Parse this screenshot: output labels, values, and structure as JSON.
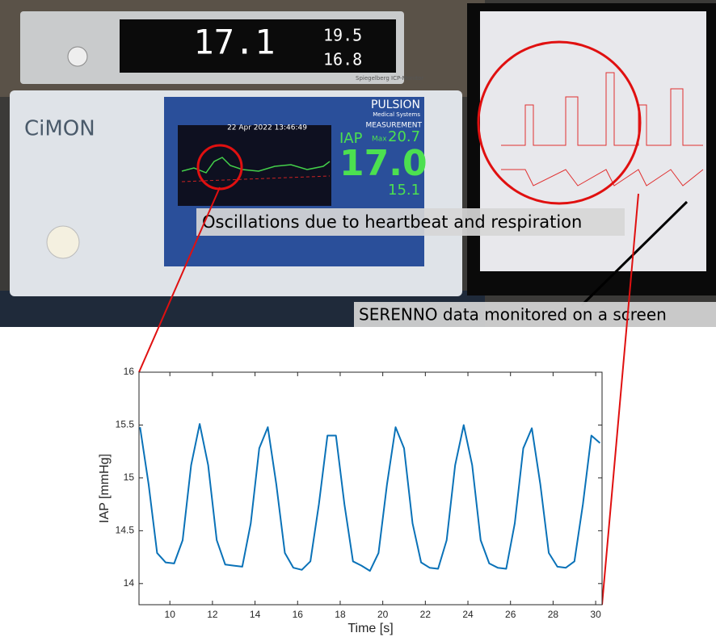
{
  "photo": {
    "icp_brand": "Spiegelberg ICP-Monitor",
    "icp_main": "17.1",
    "icp_sys": "19.5",
    "icp_dia": "16.8",
    "device_name": "CiMON",
    "brand": "PULSION",
    "brand_sub": "Medical Systems",
    "mode": "MEASUREMENT",
    "datetime": "22 Apr 2022  13:46:49",
    "param": "IAP",
    "max_label": "Max",
    "max_value": "20.7",
    "current": "17.0",
    "min_value": "15.1",
    "annotation_1": "Oscillations due to heartbeat and respiration",
    "annotation_2": "SERENNO data monitored on a screen"
  },
  "chart_data": {
    "type": "line",
    "xlabel": "Time [s]",
    "ylabel": "IAP [mmHg]",
    "xlim": [
      8.55,
      30.3
    ],
    "ylim": [
      13.8,
      16
    ],
    "xticks": [
      10,
      12,
      14,
      16,
      18,
      20,
      22,
      24,
      26,
      28,
      30
    ],
    "yticks": [
      14,
      14.5,
      15,
      15.5,
      16
    ],
    "x": [
      8.6,
      9.0,
      9.4,
      9.8,
      10.2,
      10.6,
      11.0,
      11.4,
      11.8,
      12.2,
      12.6,
      13.0,
      13.4,
      13.8,
      14.2,
      14.6,
      15.0,
      15.4,
      15.8,
      16.2,
      16.6,
      17.0,
      17.4,
      17.8,
      18.2,
      18.6,
      19.0,
      19.4,
      19.8,
      20.2,
      20.6,
      21.0,
      21.4,
      21.8,
      22.2,
      22.6,
      23.0,
      23.4,
      23.8,
      24.2,
      24.6,
      25.0,
      25.4,
      25.8,
      26.2,
      26.6,
      27.0,
      27.4,
      27.8,
      28.2,
      28.6,
      29.0,
      29.4,
      29.8,
      30.2
    ],
    "values": [
      15.48,
      14.94,
      14.29,
      14.2,
      14.19,
      14.41,
      15.12,
      15.51,
      15.12,
      14.41,
      14.18,
      14.17,
      14.16,
      14.57,
      15.28,
      15.48,
      14.94,
      14.29,
      14.15,
      14.13,
      14.21,
      14.75,
      15.4,
      15.4,
      14.75,
      14.21,
      14.17,
      14.12,
      14.29,
      14.94,
      15.48,
      15.28,
      14.57,
      14.2,
      14.15,
      14.14,
      14.41,
      15.12,
      15.5,
      15.12,
      14.41,
      14.19,
      14.15,
      14.14,
      14.57,
      15.28,
      15.47,
      14.94,
      14.29,
      14.16,
      14.15,
      14.21,
      14.75,
      15.4,
      15.33
    ],
    "color": "#0a72b8"
  }
}
